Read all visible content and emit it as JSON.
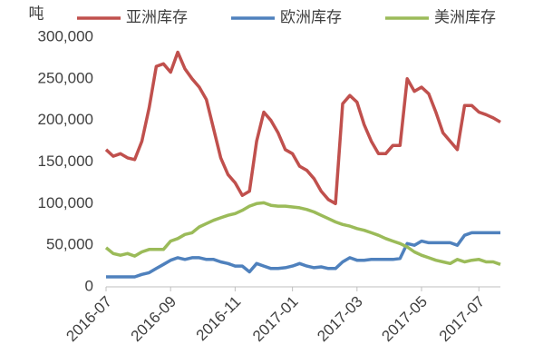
{
  "chart_data": {
    "type": "line",
    "y_label": "吨",
    "categories": [
      "2016-07",
      null,
      null,
      null,
      null,
      null,
      null,
      null,
      null,
      "2016-09",
      null,
      null,
      null,
      null,
      null,
      null,
      null,
      null,
      "2016-11",
      null,
      null,
      null,
      null,
      null,
      null,
      null,
      "2017-01",
      null,
      null,
      null,
      null,
      null,
      null,
      null,
      null,
      "2017-03",
      null,
      null,
      null,
      null,
      null,
      null,
      null,
      null,
      "2017-05",
      null,
      null,
      null,
      null,
      null,
      null,
      null,
      "2017-07",
      null,
      null,
      null
    ],
    "series": [
      {
        "name": "亚洲库存",
        "color": "#c0504d",
        "values": [
          165000,
          157000,
          160000,
          155000,
          153000,
          175000,
          215000,
          265000,
          268000,
          258000,
          282000,
          262000,
          250000,
          240000,
          225000,
          190000,
          155000,
          135000,
          125000,
          110000,
          115000,
          175000,
          210000,
          200000,
          185000,
          165000,
          160000,
          145000,
          140000,
          130000,
          115000,
          105000,
          100000,
          220000,
          230000,
          222000,
          195000,
          175000,
          160000,
          160000,
          170000,
          170000,
          250000,
          235000,
          240000,
          232000,
          210000,
          185000,
          175000,
          165000,
          218000,
          218000,
          210000,
          207000,
          203000,
          198000
        ]
      },
      {
        "name": "欧洲库存",
        "color": "#4f81bd",
        "values": [
          12000,
          12000,
          12000,
          12000,
          12000,
          15000,
          17000,
          22000,
          27000,
          32000,
          35000,
          33000,
          35000,
          35000,
          33000,
          33000,
          30000,
          28000,
          25000,
          25000,
          18000,
          28000,
          25000,
          22000,
          22000,
          23000,
          25000,
          28000,
          25000,
          23000,
          24000,
          22000,
          22000,
          30000,
          35000,
          32000,
          32000,
          33000,
          33000,
          33000,
          33000,
          34000,
          52000,
          50000,
          55000,
          53000,
          53000,
          53000,
          53000,
          50000,
          62000,
          65000,
          65000,
          65000,
          65000,
          65000
        ]
      },
      {
        "name": "美洲库存",
        "color": "#9bbb59",
        "values": [
          47000,
          40000,
          38000,
          40000,
          37000,
          42000,
          45000,
          45000,
          45000,
          55000,
          58000,
          63000,
          65000,
          72000,
          76000,
          80000,
          83000,
          86000,
          88000,
          92000,
          97000,
          100000,
          101000,
          98000,
          97000,
          97000,
          96000,
          95000,
          93000,
          90000,
          86000,
          82000,
          78000,
          75000,
          73000,
          70000,
          68000,
          65000,
          62000,
          58000,
          55000,
          52000,
          48000,
          42000,
          38000,
          35000,
          32000,
          30000,
          28000,
          33000,
          30000,
          32000,
          33000,
          30000,
          30000,
          27000
        ]
      }
    ],
    "ylim": [
      0,
      300000
    ],
    "yticks": [
      0,
      {
        "value": 50000,
        "label": "50,000"
      },
      {
        "value": 100000,
        "label": "100,000"
      },
      {
        "value": 150000,
        "label": "150,000"
      },
      {
        "value": 200000,
        "label": "200,000"
      },
      {
        "value": 250000,
        "label": "250,000"
      },
      {
        "value": 300000,
        "label": "300,000"
      }
    ],
    "legend": "top",
    "grid": false
  }
}
